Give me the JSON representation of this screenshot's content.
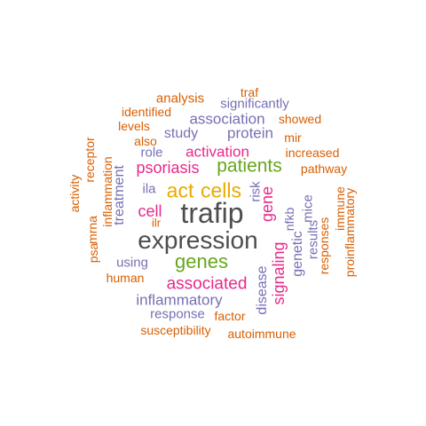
{
  "colors": {
    "orange": "#D95F02",
    "purple": "#7570B3",
    "magenta": "#E7298A",
    "green": "#66A61E",
    "gold": "#E6AB02",
    "gray": "#4D4D4D"
  },
  "words": [
    {
      "text": "trafip",
      "color": "#4D4D4D"
    },
    {
      "text": "expression",
      "color": "#4D4D4D"
    },
    {
      "text": "act",
      "color": "#E6AB02"
    },
    {
      "text": "cells",
      "color": "#E6AB02"
    },
    {
      "text": "patients",
      "color": "#66A61E"
    },
    {
      "text": "genes",
      "color": "#66A61E"
    },
    {
      "text": "psoriasis",
      "color": "#E7298A"
    },
    {
      "text": "activation",
      "color": "#E7298A"
    },
    {
      "text": "associated",
      "color": "#E7298A"
    },
    {
      "text": "cell",
      "color": "#E7298A"
    },
    {
      "text": "gene",
      "color": "#E7298A"
    },
    {
      "text": "signaling",
      "color": "#E7298A"
    },
    {
      "text": "association",
      "color": "#7570B3"
    },
    {
      "text": "protein",
      "color": "#7570B3"
    },
    {
      "text": "study",
      "color": "#7570B3"
    },
    {
      "text": "inflammatory",
      "color": "#7570B3"
    },
    {
      "text": "treatment",
      "color": "#7570B3"
    },
    {
      "text": "disease",
      "color": "#7570B3"
    },
    {
      "text": "genetic",
      "color": "#7570B3"
    },
    {
      "text": "significantly",
      "color": "#7570B3"
    },
    {
      "text": "role",
      "color": "#7570B3"
    },
    {
      "text": "ila",
      "color": "#7570B3"
    },
    {
      "text": "risk",
      "color": "#7570B3"
    },
    {
      "text": "nfkb",
      "color": "#7570B3"
    },
    {
      "text": "mice",
      "color": "#7570B3"
    },
    {
      "text": "results",
      "color": "#7570B3"
    },
    {
      "text": "using",
      "color": "#7570B3"
    },
    {
      "text": "response",
      "color": "#7570B3"
    },
    {
      "text": "analysis",
      "color": "#D95F02"
    },
    {
      "text": "traf",
      "color": "#D95F02"
    },
    {
      "text": "identified",
      "color": "#D95F02"
    },
    {
      "text": "showed",
      "color": "#D95F02"
    },
    {
      "text": "levels",
      "color": "#D95F02"
    },
    {
      "text": "mir",
      "color": "#D95F02"
    },
    {
      "text": "also",
      "color": "#D95F02"
    },
    {
      "text": "increased",
      "color": "#D95F02"
    },
    {
      "text": "pathway",
      "color": "#D95F02"
    },
    {
      "text": "ilr",
      "color": "#D95F02"
    },
    {
      "text": "human",
      "color": "#D95F02"
    },
    {
      "text": "factor",
      "color": "#D95F02"
    },
    {
      "text": "susceptibility",
      "color": "#D95F02"
    },
    {
      "text": "autoimmune",
      "color": "#D95F02"
    },
    {
      "text": "receptor",
      "color": "#D95F02"
    },
    {
      "text": "activity",
      "color": "#D95F02"
    },
    {
      "text": "inflammation",
      "color": "#D95F02"
    },
    {
      "text": "mrna",
      "color": "#D95F02"
    },
    {
      "text": "psa",
      "color": "#D95F02"
    },
    {
      "text": "immune",
      "color": "#D95F02"
    },
    {
      "text": "responses",
      "color": "#D95F02"
    },
    {
      "text": "proinflammatory",
      "color": "#D95F02"
    }
  ]
}
